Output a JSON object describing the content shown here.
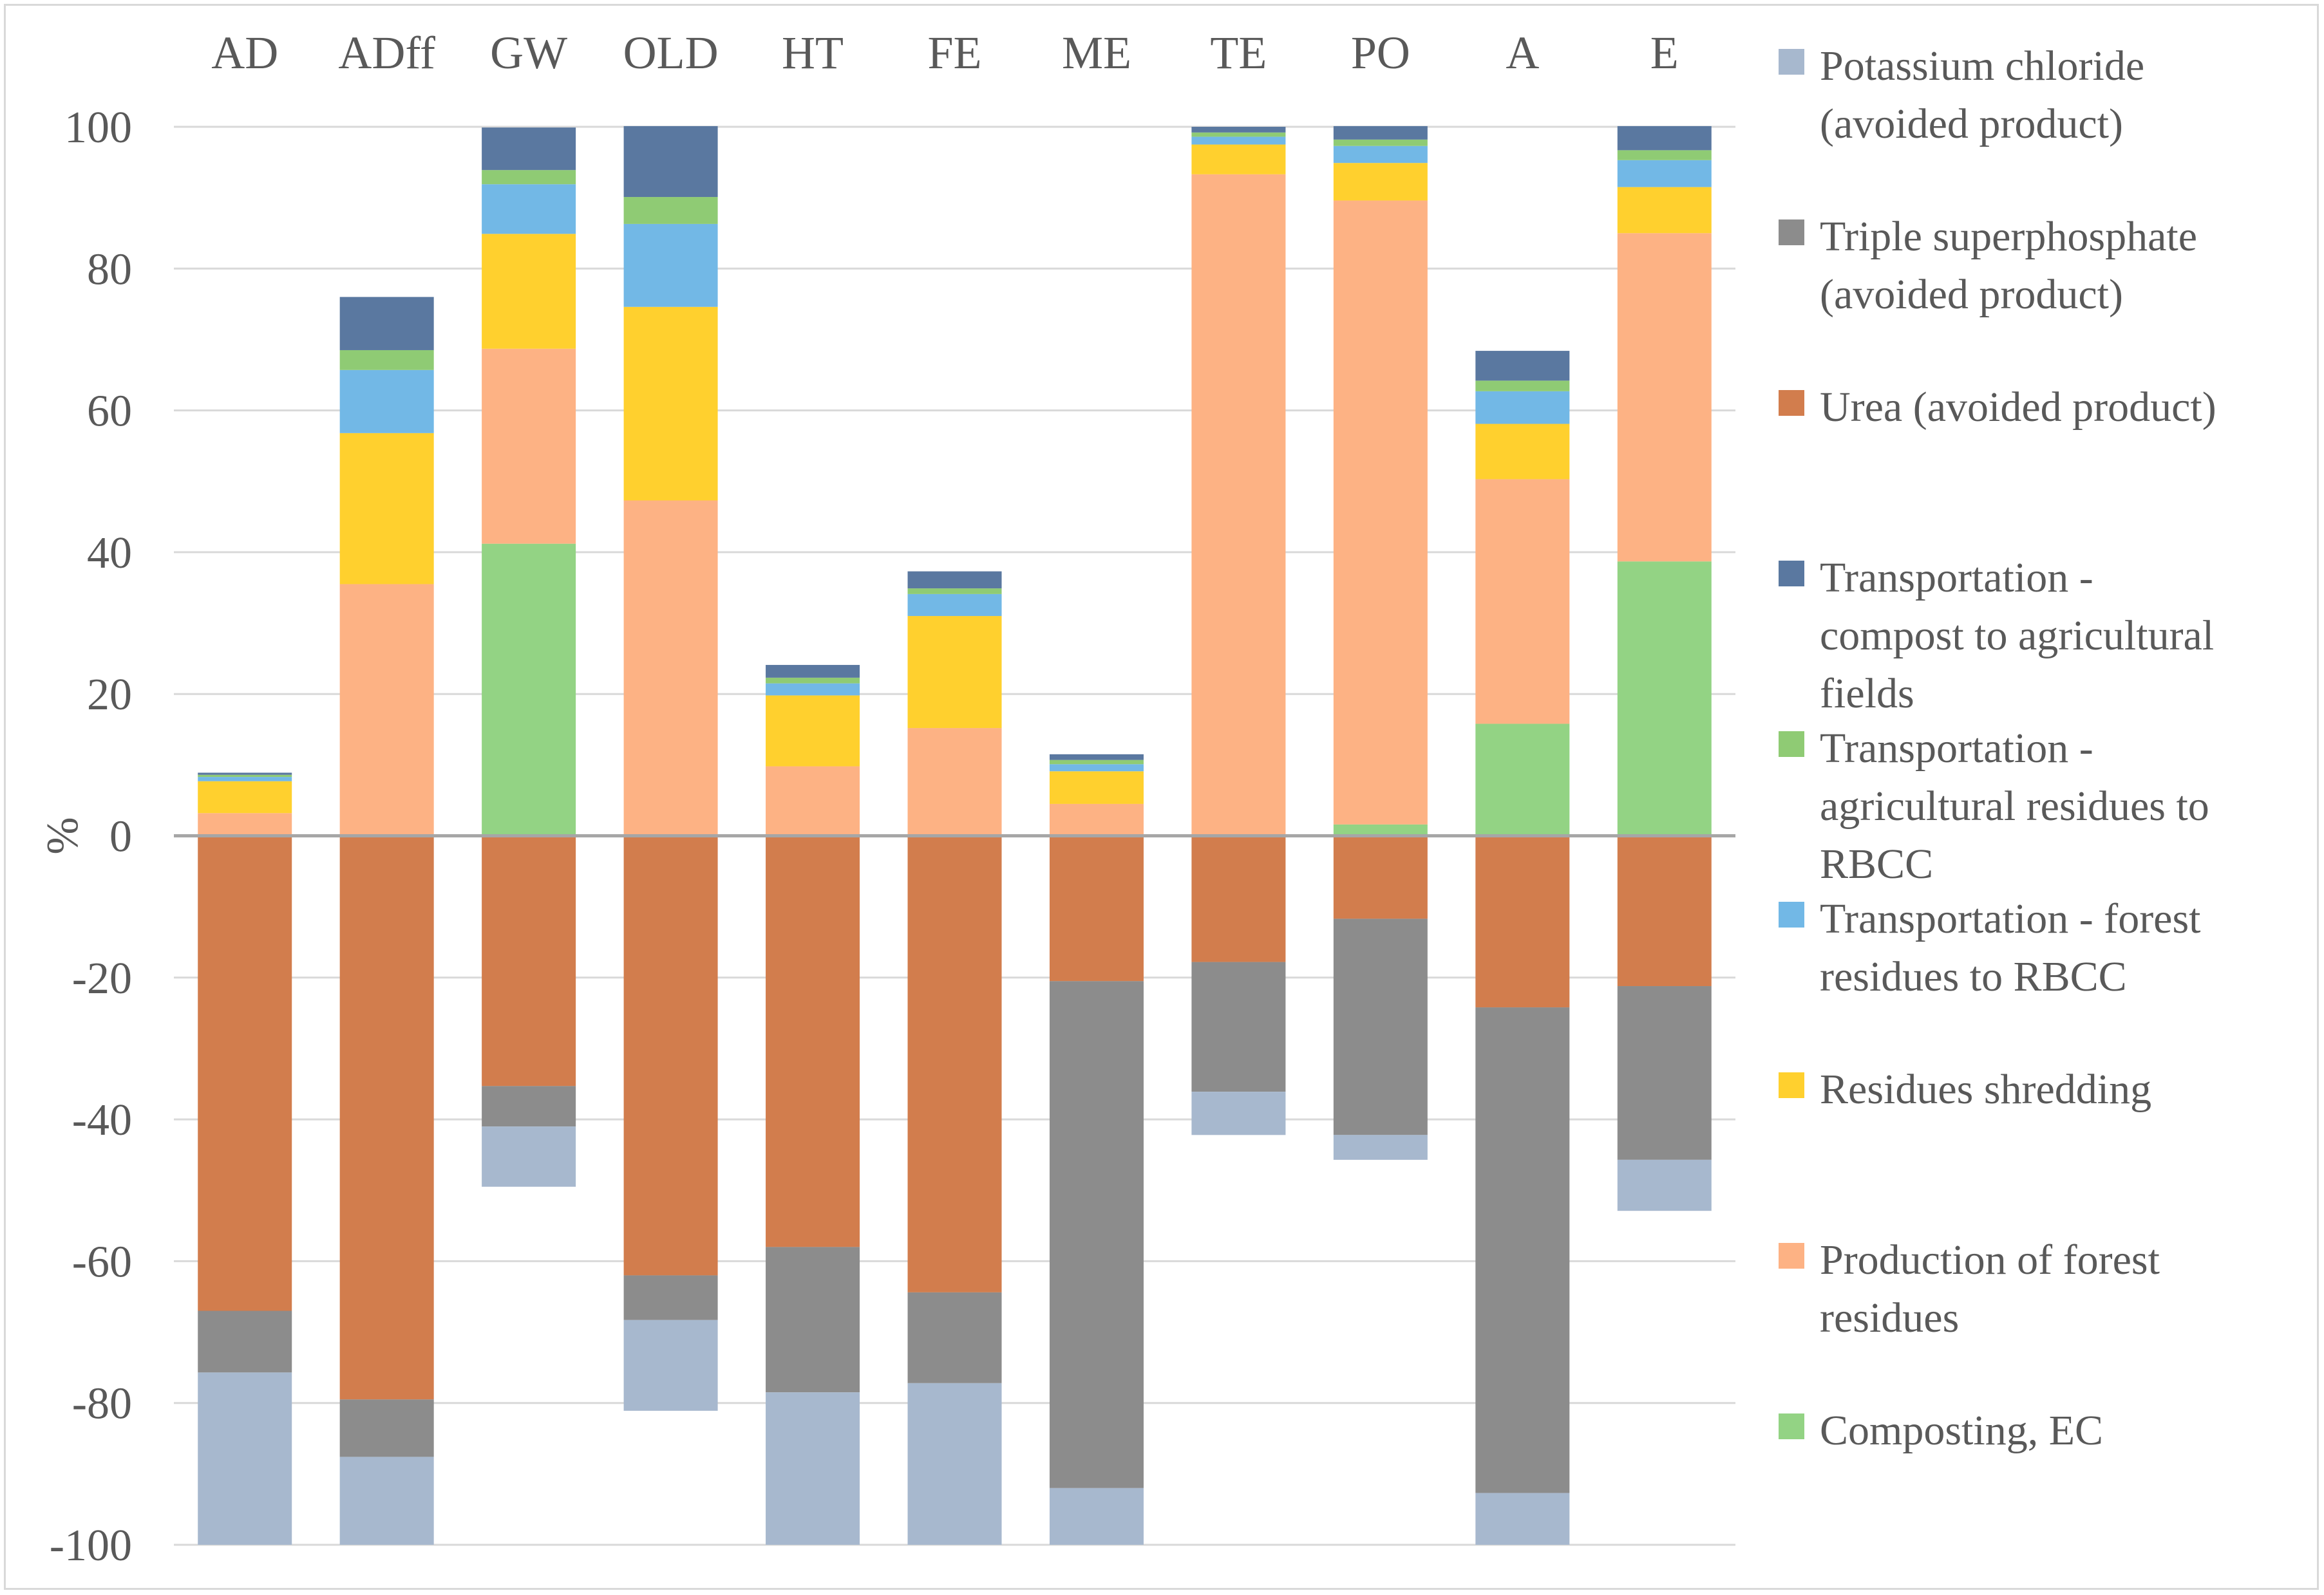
{
  "chart_data": {
    "type": "bar",
    "stacked": true,
    "title": "",
    "xlabel": "",
    "ylabel": "%",
    "ylim": [
      -100,
      100
    ],
    "yticks": [
      100,
      80,
      60,
      40,
      20,
      0,
      -20,
      -40,
      -60,
      -80,
      -100
    ],
    "grid": true,
    "legend_position": "right",
    "categories": [
      "AD",
      "ADff",
      "GW",
      "OLD",
      "HT",
      "FE",
      "ME",
      "TE",
      "PO",
      "A",
      "E"
    ],
    "series": [
      {
        "name": "Composting, EC",
        "color": "#93d384",
        "values": [
          0,
          0,
          41.2,
          0,
          0,
          0,
          0,
          0,
          1.6,
          15.8,
          38.7
        ]
      },
      {
        "name": "Production of forest residues",
        "color": "#fdb284",
        "values": [
          3.2,
          35.5,
          27.5,
          47.3,
          9.8,
          15.2,
          4.5,
          93.3,
          88.0,
          34.5,
          46.3
        ]
      },
      {
        "name": "Residues shredding",
        "color": "#ffd02e",
        "values": [
          4.5,
          21.3,
          16.2,
          27.3,
          10.0,
          15.8,
          4.6,
          4.2,
          5.3,
          7.8,
          6.5
        ]
      },
      {
        "name": "Transportation - forest residues to RBCC",
        "color": "#72b8e6",
        "values": [
          0.6,
          8.9,
          7.0,
          11.7,
          1.7,
          3.1,
          1.0,
          1.1,
          2.4,
          4.6,
          3.8
        ]
      },
      {
        "name": "Transportation - agricultural residues to RBCC",
        "color": "#8fcb74",
        "values": [
          0.3,
          2.8,
          2.0,
          3.8,
          0.8,
          0.8,
          0.6,
          0.6,
          0.9,
          1.5,
          1.4
        ]
      },
      {
        "name": "Transportation - compost to agricultural fields",
        "color": "#5a78a0",
        "values": [
          0.3,
          7.5,
          6.0,
          10.0,
          1.8,
          2.4,
          0.8,
          0.8,
          1.9,
          4.2,
          3.4
        ]
      },
      {
        "name": "Urea (avoided product)",
        "color": "#d27d4d",
        "values": [
          -67.0,
          -79.5,
          -35.3,
          -62.0,
          -58.0,
          -64.4,
          -20.5,
          -17.8,
          -11.7,
          -24.2,
          -21.2
        ]
      },
      {
        "name": "Triple superphosphate (avoided product)",
        "color": "#8c8c8c",
        "values": [
          -8.7,
          -8.1,
          -5.7,
          -6.3,
          -20.5,
          -12.8,
          -71.5,
          -18.3,
          -30.5,
          -68.5,
          -24.5
        ]
      },
      {
        "name": "Potassium chloride (avoided product)",
        "color": "#a7b8ce",
        "values": [
          -24.3,
          -12.4,
          -8.5,
          -12.8,
          -21.5,
          -22.8,
          -8.0,
          -6.1,
          -3.5,
          -7.3,
          -7.2
        ]
      }
    ],
    "legend": [
      {
        "label_lines": [
          "Potassium chloride",
          "(avoided product)"
        ],
        "color": "#a7b8ce"
      },
      {
        "label_lines": [
          "Triple superphosphate",
          "(avoided product)"
        ],
        "color": "#8c8c8c"
      },
      {
        "label_lines": [
          "Urea (avoided product)"
        ],
        "color": "#d27d4d"
      },
      {
        "label_lines": [
          "Transportation -",
          "compost to agricultural",
          "fields"
        ],
        "color": "#5a78a0"
      },
      {
        "label_lines": [
          "Transportation -",
          "agricultural residues to",
          "RBCC"
        ],
        "color": "#8fcb74"
      },
      {
        "label_lines": [
          "Transportation - forest",
          "residues to RBCC"
        ],
        "color": "#72b8e6"
      },
      {
        "label_lines": [
          "Residues shredding"
        ],
        "color": "#ffd02e"
      },
      {
        "label_lines": [
          "Production of forest",
          "residues"
        ],
        "color": "#fdb284"
      },
      {
        "label_lines": [
          "Composting, EC"
        ],
        "color": "#93d384"
      }
    ],
    "gridline_color": "#d9d9d9",
    "zero_line_color": "#a6a6a6"
  }
}
